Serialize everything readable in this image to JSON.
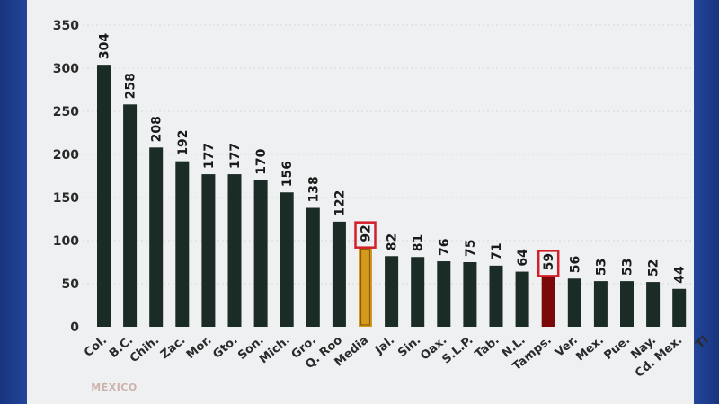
{
  "chart_data": {
    "type": "bar",
    "title": "",
    "xlabel": "",
    "ylabel": "",
    "ylim": [
      0,
      350
    ],
    "yticks": [
      0,
      50,
      100,
      150,
      200,
      250,
      300,
      350
    ],
    "grid": true,
    "categories": [
      "Col.",
      "B.C.",
      "Chih.",
      "Zac.",
      "Mor.",
      "Gto.",
      "Son.",
      "Mich.",
      "Gro.",
      "Q. Roo",
      "Media",
      "Jal.",
      "Sin.",
      "Oax.",
      "S.L.P.",
      "Tab.",
      "N.L.",
      "Tamps.",
      "Ver.",
      "Mex.",
      "Pue.",
      "Nay.",
      "Cd. Mex.",
      "Tl"
    ],
    "values": [
      304,
      258,
      208,
      192,
      177,
      177,
      170,
      156,
      138,
      122,
      92,
      82,
      81,
      76,
      75,
      71,
      64,
      59,
      56,
      53,
      53,
      52,
      44,
      null
    ],
    "colors": {
      "default": "#1b2b25",
      "Media": "#d39a1e",
      "Tamps.": "#7a0a0a",
      "highlight_box": "#d21f2a",
      "axis_text": "#2a2a2a",
      "grid": "#d8d8d8"
    },
    "highlighted": [
      "Media",
      "Tamps."
    ]
  },
  "logo": {
    "text": "MÉXICO"
  }
}
